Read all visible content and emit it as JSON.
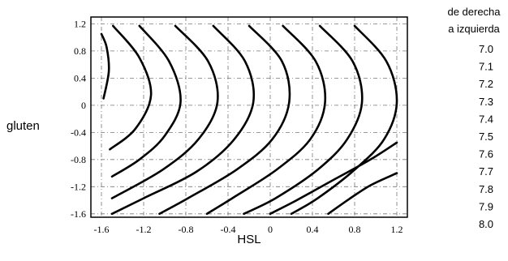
{
  "chart_data": {
    "type": "contour",
    "xlabel": "HSL",
    "ylabel": "gluten",
    "xlim": [
      -1.7,
      1.3
    ],
    "ylim": [
      -1.65,
      1.3
    ],
    "x_ticks": [
      "-1.6",
      "-1.2",
      "-0.8",
      "-0.4",
      "0",
      "0.4",
      "0.8",
      "1.2"
    ],
    "y_ticks": [
      "1.2",
      "0.8",
      "0.4",
      "0",
      "-0.4",
      "-0.8",
      "-1.2",
      "-1.6"
    ],
    "grid": true,
    "legend_title": [
      "de derecha",
      "a izquierda"
    ],
    "levels": [
      "7.0",
      "7.1",
      "7.2",
      "7.3",
      "7.4",
      "7.5",
      "7.6",
      "7.7",
      "7.8",
      "7.9",
      "8.0"
    ],
    "contour_lines": [
      {
        "points": [
          [
            -1.6,
            1.05
          ],
          [
            -1.55,
            0.85
          ],
          [
            -1.53,
            0.5
          ],
          [
            -1.58,
            0.1
          ]
        ]
      },
      {
        "points": [
          [
            -1.49,
            1.17
          ],
          [
            -1.24,
            0.7
          ],
          [
            -1.13,
            0.15
          ],
          [
            -1.28,
            -0.35
          ],
          [
            -1.52,
            -0.65
          ]
        ]
      },
      {
        "points": [
          [
            -1.24,
            1.17
          ],
          [
            -0.96,
            0.65
          ],
          [
            -0.85,
            0.05
          ],
          [
            -1.0,
            -0.45
          ],
          [
            -1.24,
            -0.8
          ],
          [
            -1.5,
            -1.05
          ]
        ]
      },
      {
        "points": [
          [
            -0.9,
            1.17
          ],
          [
            -0.59,
            0.65
          ],
          [
            -0.5,
            0.05
          ],
          [
            -0.68,
            -0.5
          ],
          [
            -1.02,
            -0.95
          ],
          [
            -1.5,
            -1.37
          ]
        ]
      },
      {
        "points": [
          [
            -0.54,
            1.17
          ],
          [
            -0.24,
            0.65
          ],
          [
            -0.16,
            0.05
          ],
          [
            -0.34,
            -0.5
          ],
          [
            -0.7,
            -0.98
          ],
          [
            -1.2,
            -1.37
          ],
          [
            -1.5,
            -1.6
          ]
        ]
      },
      {
        "points": [
          [
            -0.2,
            1.17
          ],
          [
            0.11,
            0.65
          ],
          [
            0.18,
            0.05
          ],
          [
            0.02,
            -0.5
          ],
          [
            -0.32,
            -0.95
          ],
          [
            -0.78,
            -1.37
          ],
          [
            -1.05,
            -1.6
          ]
        ]
      },
      {
        "points": [
          [
            0.12,
            1.17
          ],
          [
            0.43,
            0.65
          ],
          [
            0.52,
            0.05
          ],
          [
            0.38,
            -0.5
          ],
          [
            0.06,
            -0.95
          ],
          [
            -0.36,
            -1.37
          ],
          [
            -0.6,
            -1.6
          ]
        ]
      },
      {
        "points": [
          [
            0.47,
            1.17
          ],
          [
            0.78,
            0.65
          ],
          [
            0.87,
            0.05
          ],
          [
            0.73,
            -0.5
          ],
          [
            0.45,
            -0.95
          ],
          [
            0.05,
            -1.37
          ],
          [
            -0.25,
            -1.6
          ]
        ]
      },
      {
        "points": [
          [
            0.8,
            1.17
          ],
          [
            1.1,
            0.65
          ],
          [
            1.2,
            0.05
          ],
          [
            1.08,
            -0.5
          ],
          [
            0.8,
            -0.95
          ],
          [
            0.45,
            -1.37
          ],
          [
            0.2,
            -1.6
          ]
        ]
      },
      {
        "points": [
          [
            1.2,
            -0.55
          ],
          [
            0.95,
            -0.8
          ],
          [
            0.6,
            -1.1
          ],
          [
            0.25,
            -1.4
          ],
          [
            0.0,
            -1.6
          ]
        ]
      },
      {
        "points": [
          [
            1.2,
            -1.0
          ],
          [
            0.95,
            -1.18
          ],
          [
            0.75,
            -1.38
          ],
          [
            0.55,
            -1.6
          ]
        ]
      }
    ]
  }
}
